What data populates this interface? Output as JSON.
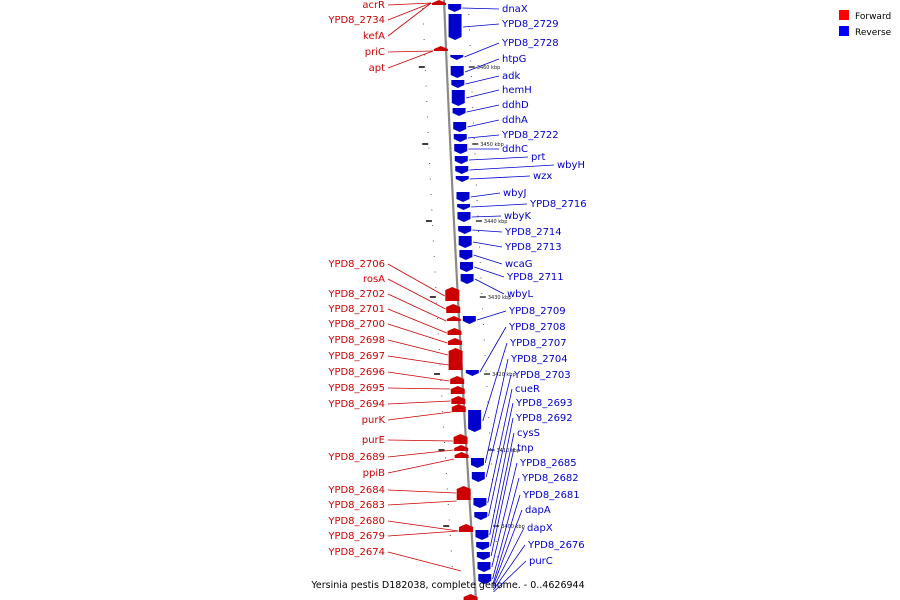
{
  "caption": "Yersinia pestis D182038, complete genome. - 0..4626944",
  "legend": [
    {
      "label": "Forward",
      "color": "#ff0000"
    },
    {
      "label": "Reverse",
      "color": "#0000ff"
    }
  ],
  "colors": {
    "forward_label": "#cc0000",
    "reverse_label": "#0000cc",
    "forward_fill": "#ee1111",
    "reverse_fill": "#1a3bd6",
    "axis": "#888888"
  },
  "ticks": [
    "3460 kbp",
    "3450 kbp",
    "3440 kbp",
    "3430 kbp",
    "3420 kbp",
    "3410 kbp",
    "3400 kbp"
  ],
  "forward_genes": [
    "acrR",
    "YPD8_2734",
    "kefA",
    "priC",
    "apt",
    "YPD8_2706",
    "rosA",
    "YPD8_2702",
    "YPD8_2701",
    "YPD8_2700",
    "YPD8_2698",
    "YPD8_2697",
    "YPD8_2696",
    "YPD8_2695",
    "YPD8_2694",
    "purK",
    "purE",
    "YPD8_2689",
    "ppiB",
    "YPD8_2684",
    "YPD8_2683",
    "YPD8_2680",
    "YPD8_2679",
    "YPD8_2674"
  ],
  "reverse_genes": [
    "dnaX",
    "YPD8_2729",
    "YPD8_2728",
    "htpG",
    "adk",
    "hemH",
    "ddhD",
    "ddhA",
    "YPD8_2722",
    "ddhC",
    "prt",
    "wbyH",
    "wzx",
    "wbyJ",
    "YPD8_2716",
    "wbyK",
    "YPD8_2714",
    "YPD8_2713",
    "wcaG",
    "YPD8_2711",
    "wbyL",
    "YPD8_2709",
    "YPD8_2708",
    "YPD8_2707",
    "YPD8_2704",
    "YPD8_2703",
    "cueR",
    "YPD8_2693",
    "YPD8_2692",
    "cysS",
    "tnp",
    "YPD8_2685",
    "YPD8_2682",
    "YPD8_2681",
    "dapA",
    "dapX",
    "YPD8_2676",
    "purC"
  ]
}
